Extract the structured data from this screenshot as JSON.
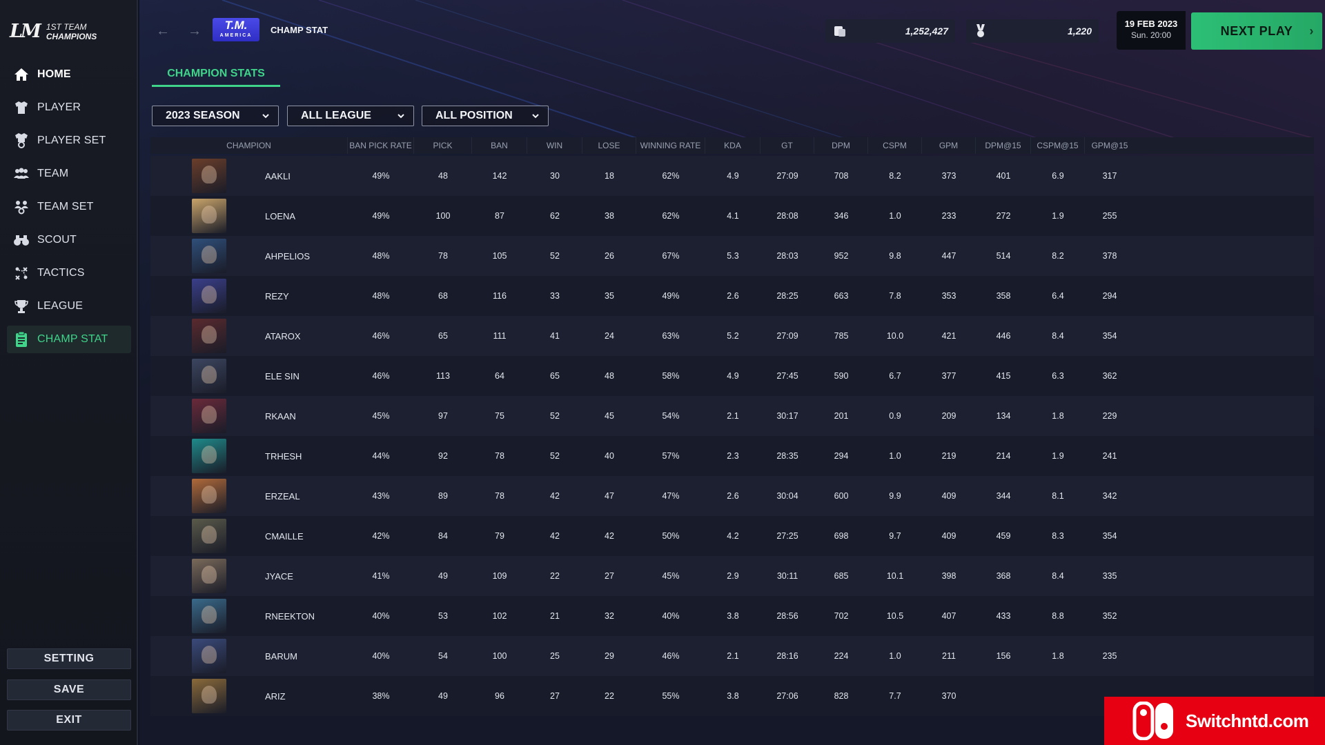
{
  "logo": {
    "mark": "LM",
    "line1": "1ST TEAM",
    "line2": "CHAMPIONS"
  },
  "sidebar": {
    "items": [
      {
        "label": "HOME",
        "icon": "home-icon"
      },
      {
        "label": "PLAYER",
        "icon": "shirt-icon"
      },
      {
        "label": "PLAYER SET",
        "icon": "shirt-settings-icon"
      },
      {
        "label": "TEAM",
        "icon": "team-icon"
      },
      {
        "label": "TEAM SET",
        "icon": "team-settings-icon"
      },
      {
        "label": "SCOUT",
        "icon": "binoculars-icon"
      },
      {
        "label": "TACTICS",
        "icon": "tactics-icon"
      },
      {
        "label": "LEAGUE",
        "icon": "trophy-icon"
      },
      {
        "label": "CHAMP STAT",
        "icon": "clipboard-icon"
      }
    ],
    "active": "CHAMP STAT",
    "setting_label": "SETTING",
    "save_label": "SAVE",
    "exit_label": "EXIT"
  },
  "header": {
    "back_icon": "arrow-left-icon",
    "forward_icon": "arrow-right-icon",
    "team_badge": "T.M.",
    "team_badge_sub": "AMERICA",
    "page_title": "CHAMP STAT",
    "coins": "1,252,427",
    "medals": "1,220",
    "date": "19 FEB 2023",
    "time": "Sun. 20:00",
    "next_play": "NEXT PLAY"
  },
  "tabs": [
    "CHAMPION STATS"
  ],
  "filters": {
    "season": "2023 SEASON",
    "league": "ALL LEAGUE",
    "position": "ALL POSITION"
  },
  "table": {
    "columns": [
      "CHAMPION",
      "BAN PICK RATE",
      "PICK",
      "BAN",
      "WIN",
      "LOSE",
      "WINNING RATE",
      "KDA",
      "GT",
      "DPM",
      "CSPM",
      "GPM",
      "DPM@15",
      "CSPM@15",
      "GPM@15"
    ],
    "rows": [
      {
        "name": "AAKLI",
        "bpr": "49%",
        "pick": "48",
        "ban": "142",
        "win": "30",
        "lose": "18",
        "wr": "62%",
        "kda": "4.9",
        "gt": "27:09",
        "dpm": "708",
        "cspm": "8.2",
        "gpm": "373",
        "dpm15": "401",
        "cspm15": "6.9",
        "gpm15": "317"
      },
      {
        "name": "LOENA",
        "bpr": "49%",
        "pick": "100",
        "ban": "87",
        "win": "62",
        "lose": "38",
        "wr": "62%",
        "kda": "4.1",
        "gt": "28:08",
        "dpm": "346",
        "cspm": "1.0",
        "gpm": "233",
        "dpm15": "272",
        "cspm15": "1.9",
        "gpm15": "255"
      },
      {
        "name": "AHPELIOS",
        "bpr": "48%",
        "pick": "78",
        "ban": "105",
        "win": "52",
        "lose": "26",
        "wr": "67%",
        "kda": "5.3",
        "gt": "28:03",
        "dpm": "952",
        "cspm": "9.8",
        "gpm": "447",
        "dpm15": "514",
        "cspm15": "8.2",
        "gpm15": "378"
      },
      {
        "name": "REZY",
        "bpr": "48%",
        "pick": "68",
        "ban": "116",
        "win": "33",
        "lose": "35",
        "wr": "49%",
        "kda": "2.6",
        "gt": "28:25",
        "dpm": "663",
        "cspm": "7.8",
        "gpm": "353",
        "dpm15": "358",
        "cspm15": "6.4",
        "gpm15": "294"
      },
      {
        "name": "ATAROX",
        "bpr": "46%",
        "pick": "65",
        "ban": "111",
        "win": "41",
        "lose": "24",
        "wr": "63%",
        "kda": "5.2",
        "gt": "27:09",
        "dpm": "785",
        "cspm": "10.0",
        "gpm": "421",
        "dpm15": "446",
        "cspm15": "8.4",
        "gpm15": "354"
      },
      {
        "name": "ELE SIN",
        "bpr": "46%",
        "pick": "113",
        "ban": "64",
        "win": "65",
        "lose": "48",
        "wr": "58%",
        "kda": "4.9",
        "gt": "27:45",
        "dpm": "590",
        "cspm": "6.7",
        "gpm": "377",
        "dpm15": "415",
        "cspm15": "6.3",
        "gpm15": "362"
      },
      {
        "name": "RKAAN",
        "bpr": "45%",
        "pick": "97",
        "ban": "75",
        "win": "52",
        "lose": "45",
        "wr": "54%",
        "kda": "2.1",
        "gt": "30:17",
        "dpm": "201",
        "cspm": "0.9",
        "gpm": "209",
        "dpm15": "134",
        "cspm15": "1.8",
        "gpm15": "229"
      },
      {
        "name": "TRHESH",
        "bpr": "44%",
        "pick": "92",
        "ban": "78",
        "win": "52",
        "lose": "40",
        "wr": "57%",
        "kda": "2.3",
        "gt": "28:35",
        "dpm": "294",
        "cspm": "1.0",
        "gpm": "219",
        "dpm15": "214",
        "cspm15": "1.9",
        "gpm15": "241"
      },
      {
        "name": "ERZEAL",
        "bpr": "43%",
        "pick": "89",
        "ban": "78",
        "win": "42",
        "lose": "47",
        "wr": "47%",
        "kda": "2.6",
        "gt": "30:04",
        "dpm": "600",
        "cspm": "9.9",
        "gpm": "409",
        "dpm15": "344",
        "cspm15": "8.1",
        "gpm15": "342"
      },
      {
        "name": "CMAILLE",
        "bpr": "42%",
        "pick": "84",
        "ban": "79",
        "win": "42",
        "lose": "42",
        "wr": "50%",
        "kda": "4.2",
        "gt": "27:25",
        "dpm": "698",
        "cspm": "9.7",
        "gpm": "409",
        "dpm15": "459",
        "cspm15": "8.3",
        "gpm15": "354"
      },
      {
        "name": "JYACE",
        "bpr": "41%",
        "pick": "49",
        "ban": "109",
        "win": "22",
        "lose": "27",
        "wr": "45%",
        "kda": "2.9",
        "gt": "30:11",
        "dpm": "685",
        "cspm": "10.1",
        "gpm": "398",
        "dpm15": "368",
        "cspm15": "8.4",
        "gpm15": "335"
      },
      {
        "name": "RNEEKTON",
        "bpr": "40%",
        "pick": "53",
        "ban": "102",
        "win": "21",
        "lose": "32",
        "wr": "40%",
        "kda": "3.8",
        "gt": "28:56",
        "dpm": "702",
        "cspm": "10.5",
        "gpm": "407",
        "dpm15": "433",
        "cspm15": "8.8",
        "gpm15": "352"
      },
      {
        "name": "BARUM",
        "bpr": "40%",
        "pick": "54",
        "ban": "100",
        "win": "25",
        "lose": "29",
        "wr": "46%",
        "kda": "2.1",
        "gt": "28:16",
        "dpm": "224",
        "cspm": "1.0",
        "gpm": "211",
        "dpm15": "156",
        "cspm15": "1.8",
        "gpm15": "235"
      },
      {
        "name": "ARIZ",
        "bpr": "38%",
        "pick": "49",
        "ban": "96",
        "win": "27",
        "lose": "22",
        "wr": "55%",
        "kda": "3.8",
        "gt": "27:06",
        "dpm": "828",
        "cspm": "7.7",
        "gpm": "370",
        "dpm15": "",
        "cspm15": "",
        "gpm15": ""
      }
    ]
  },
  "portrait_colors": [
    "#6b3e2a",
    "#c9a46a",
    "#2f4f7a",
    "#3a3f8a",
    "#5a2a2e",
    "#3c4660",
    "#6a2a3a",
    "#1f8a8a",
    "#b06a3a",
    "#5a5a4a",
    "#7a6a5a",
    "#3a6a8a",
    "#3a4a7a",
    "#8a6a3a"
  ],
  "watermark": {
    "text": "Switchntd.com"
  },
  "colors": {
    "accent": "#3fd48a",
    "next_play": "#2dbf76",
    "watermark": "#e60012"
  }
}
